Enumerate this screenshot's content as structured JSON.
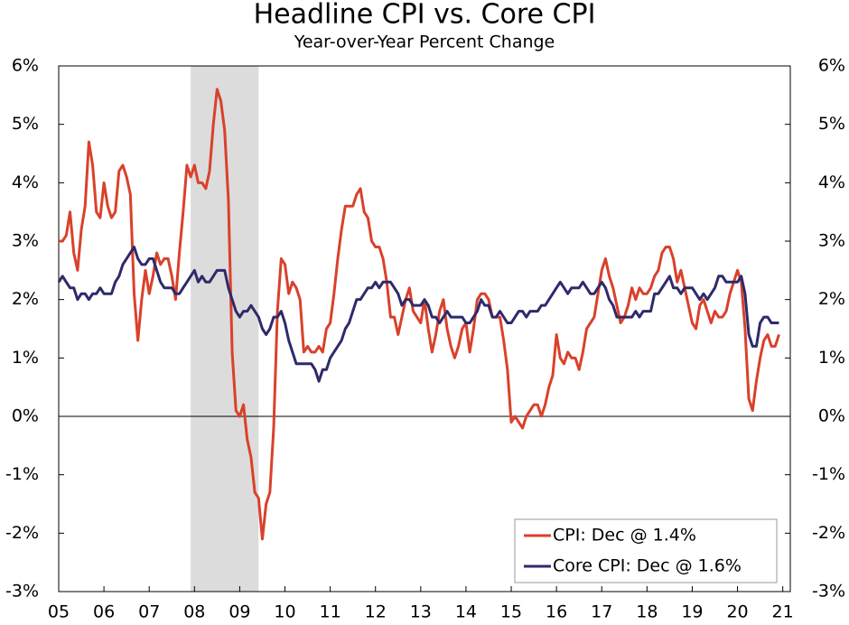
{
  "chart_data": {
    "type": "line",
    "title": "Headline CPI vs. Core CPI",
    "subtitle": "Year-over-Year Percent Change",
    "x": [
      0,
      1,
      2,
      3,
      4,
      5,
      6,
      7,
      8,
      9,
      10,
      11,
      12,
      13,
      14,
      15,
      16,
      17,
      18,
      19,
      20,
      21,
      22,
      23,
      24,
      25,
      26,
      27,
      28,
      29,
      30,
      31,
      32,
      33,
      34,
      35,
      36,
      37,
      38,
      39,
      40,
      41,
      42,
      43,
      44,
      45,
      46,
      47,
      48,
      49,
      50,
      51,
      52,
      53,
      54,
      55,
      56,
      57,
      58,
      59,
      60,
      61,
      62,
      63,
      64,
      65,
      66,
      67,
      68,
      69,
      70,
      71,
      72,
      73,
      74,
      75,
      76,
      77,
      78,
      79,
      80,
      81,
      82,
      83,
      84,
      85,
      86,
      87,
      88,
      89,
      90,
      91,
      92,
      93,
      94,
      95,
      96,
      97,
      98,
      99,
      100,
      101,
      102,
      103,
      104,
      105,
      106,
      107,
      108,
      109,
      110,
      111,
      112,
      113,
      114,
      115,
      116,
      117,
      118,
      119,
      120,
      121,
      122,
      123,
      124,
      125,
      126,
      127,
      128,
      129,
      130,
      131,
      132,
      133,
      134,
      135,
      136,
      137,
      138,
      139,
      140,
      141,
      142,
      143,
      144,
      145,
      146,
      147,
      148,
      149,
      150,
      151,
      152,
      153,
      154,
      155,
      156,
      157,
      158,
      159,
      160,
      161,
      162,
      163,
      164,
      165,
      166,
      167,
      168,
      169,
      170,
      171,
      172,
      173,
      174,
      175,
      176,
      177,
      178,
      179,
      180,
      181,
      182,
      183,
      184,
      185,
      186,
      187,
      188,
      189,
      190,
      191
    ],
    "series": [
      {
        "name": "CPI: Dec @ 1.4%",
        "color": "#d9412b",
        "values": [
          3.0,
          3.0,
          3.1,
          3.5,
          2.8,
          2.5,
          3.2,
          3.6,
          4.7,
          4.3,
          3.5,
          3.4,
          4.0,
          3.6,
          3.4,
          3.5,
          4.2,
          4.3,
          4.1,
          3.8,
          2.1,
          1.3,
          2.0,
          2.5,
          2.1,
          2.4,
          2.8,
          2.6,
          2.7,
          2.7,
          2.4,
          2.0,
          2.8,
          3.5,
          4.3,
          4.1,
          4.3,
          4.0,
          4.0,
          3.9,
          4.2,
          5.0,
          5.6,
          5.4,
          4.9,
          3.7,
          1.1,
          0.1,
          0.0,
          0.2,
          -0.4,
          -0.7,
          -1.3,
          -1.4,
          -2.1,
          -1.5,
          -1.3,
          -0.2,
          1.8,
          2.7,
          2.6,
          2.1,
          2.3,
          2.2,
          2.0,
          1.1,
          1.2,
          1.1,
          1.1,
          1.2,
          1.1,
          1.5,
          1.6,
          2.1,
          2.7,
          3.2,
          3.6,
          3.6,
          3.6,
          3.8,
          3.9,
          3.5,
          3.4,
          3.0,
          2.9,
          2.9,
          2.7,
          2.3,
          1.7,
          1.7,
          1.4,
          1.7,
          2.0,
          2.2,
          1.8,
          1.7,
          1.6,
          2.0,
          1.5,
          1.1,
          1.4,
          1.8,
          2.0,
          1.5,
          1.2,
          1.0,
          1.2,
          1.5,
          1.6,
          1.1,
          1.5,
          2.0,
          2.1,
          2.1,
          2.0,
          1.7,
          1.7,
          1.7,
          1.3,
          0.8,
          -0.1,
          0.0,
          -0.1,
          -0.2,
          0.0,
          0.1,
          0.2,
          0.2,
          0.0,
          0.2,
          0.5,
          0.7,
          1.4,
          1.0,
          0.9,
          1.1,
          1.0,
          1.0,
          0.8,
          1.1,
          1.5,
          1.6,
          1.7,
          2.1,
          2.5,
          2.7,
          2.4,
          2.2,
          1.9,
          1.6,
          1.7,
          1.9,
          2.2,
          2.0,
          2.2,
          2.1,
          2.1,
          2.2,
          2.4,
          2.5,
          2.8,
          2.9,
          2.9,
          2.7,
          2.3,
          2.5,
          2.2,
          1.9,
          1.6,
          1.5,
          1.9,
          2.0,
          1.8,
          1.6,
          1.8,
          1.7,
          1.7,
          1.8,
          2.1,
          2.3,
          2.5,
          2.3,
          1.5,
          0.3,
          0.1,
          0.6,
          1.0,
          1.3,
          1.4,
          1.2,
          1.2,
          1.4
        ]
      },
      {
        "name": "Core CPI: Dec @ 1.6%",
        "color": "#2e2a6b",
        "values": [
          2.3,
          2.4,
          2.3,
          2.2,
          2.2,
          2.0,
          2.1,
          2.1,
          2.0,
          2.1,
          2.1,
          2.2,
          2.1,
          2.1,
          2.1,
          2.3,
          2.4,
          2.6,
          2.7,
          2.8,
          2.9,
          2.7,
          2.6,
          2.6,
          2.7,
          2.7,
          2.5,
          2.3,
          2.2,
          2.2,
          2.2,
          2.1,
          2.1,
          2.2,
          2.3,
          2.4,
          2.5,
          2.3,
          2.4,
          2.3,
          2.3,
          2.4,
          2.5,
          2.5,
          2.5,
          2.2,
          2.0,
          1.8,
          1.7,
          1.8,
          1.8,
          1.9,
          1.8,
          1.7,
          1.5,
          1.4,
          1.5,
          1.7,
          1.7,
          1.8,
          1.6,
          1.3,
          1.1,
          0.9,
          0.9,
          0.9,
          0.9,
          0.9,
          0.8,
          0.6,
          0.8,
          0.8,
          1.0,
          1.1,
          1.2,
          1.3,
          1.5,
          1.6,
          1.8,
          2.0,
          2.0,
          2.1,
          2.2,
          2.2,
          2.3,
          2.2,
          2.3,
          2.3,
          2.3,
          2.2,
          2.1,
          1.9,
          2.0,
          2.0,
          1.9,
          1.9,
          1.9,
          2.0,
          1.9,
          1.7,
          1.7,
          1.6,
          1.7,
          1.8,
          1.7,
          1.7,
          1.7,
          1.7,
          1.6,
          1.6,
          1.7,
          1.8,
          2.0,
          1.9,
          1.9,
          1.7,
          1.7,
          1.8,
          1.7,
          1.6,
          1.6,
          1.7,
          1.8,
          1.8,
          1.7,
          1.8,
          1.8,
          1.8,
          1.9,
          1.9,
          2.0,
          2.1,
          2.2,
          2.3,
          2.2,
          2.1,
          2.2,
          2.2,
          2.2,
          2.3,
          2.2,
          2.1,
          2.1,
          2.2,
          2.3,
          2.2,
          2.0,
          1.9,
          1.7,
          1.7,
          1.7,
          1.7,
          1.7,
          1.8,
          1.7,
          1.8,
          1.8,
          1.8,
          2.1,
          2.1,
          2.2,
          2.3,
          2.4,
          2.2,
          2.2,
          2.1,
          2.2,
          2.2,
          2.2,
          2.1,
          2.0,
          2.1,
          2.0,
          2.1,
          2.2,
          2.4,
          2.4,
          2.3,
          2.3,
          2.3,
          2.3,
          2.4,
          2.1,
          1.4,
          1.2,
          1.2,
          1.6,
          1.7,
          1.7,
          1.6,
          1.6,
          1.6
        ]
      }
    ],
    "xlim": [
      0,
      194
    ],
    "xticks": [
      {
        "value": 0,
        "label": "05"
      },
      {
        "value": 12,
        "label": "06"
      },
      {
        "value": 24,
        "label": "07"
      },
      {
        "value": 36,
        "label": "08"
      },
      {
        "value": 48,
        "label": "09"
      },
      {
        "value": 60,
        "label": "10"
      },
      {
        "value": 72,
        "label": "11"
      },
      {
        "value": 84,
        "label": "12"
      },
      {
        "value": 96,
        "label": "13"
      },
      {
        "value": 108,
        "label": "14"
      },
      {
        "value": 120,
        "label": "15"
      },
      {
        "value": 132,
        "label": "16"
      },
      {
        "value": 144,
        "label": "17"
      },
      {
        "value": 156,
        "label": "18"
      },
      {
        "value": 168,
        "label": "19"
      },
      {
        "value": 180,
        "label": "20"
      },
      {
        "value": 192,
        "label": "21"
      }
    ],
    "ylim": [
      -3,
      6
    ],
    "yticks": [
      {
        "value": -3,
        "label": "-3%"
      },
      {
        "value": -2,
        "label": "-2%"
      },
      {
        "value": -1,
        "label": "-1%"
      },
      {
        "value": 0,
        "label": "0%"
      },
      {
        "value": 1,
        "label": "1%"
      },
      {
        "value": 2,
        "label": "2%"
      },
      {
        "value": 3,
        "label": "3%"
      },
      {
        "value": 4,
        "label": "4%"
      },
      {
        "value": 5,
        "label": "5%"
      },
      {
        "value": 6,
        "label": "6%"
      }
    ],
    "y2lim": [
      -3,
      6
    ],
    "y2ticks": [
      {
        "value": -3,
        "label": "-3%"
      },
      {
        "value": -2,
        "label": "-2%"
      },
      {
        "value": -1,
        "label": "-1%"
      },
      {
        "value": 0,
        "label": "0%"
      },
      {
        "value": 1,
        "label": "1%"
      },
      {
        "value": 2,
        "label": "2%"
      },
      {
        "value": 3,
        "label": "3%"
      },
      {
        "value": 4,
        "label": "4%"
      },
      {
        "value": 5,
        "label": "5%"
      },
      {
        "value": 6,
        "label": "6%"
      }
    ],
    "shaded_range": [
      35,
      53
    ],
    "legend": "lower right"
  }
}
